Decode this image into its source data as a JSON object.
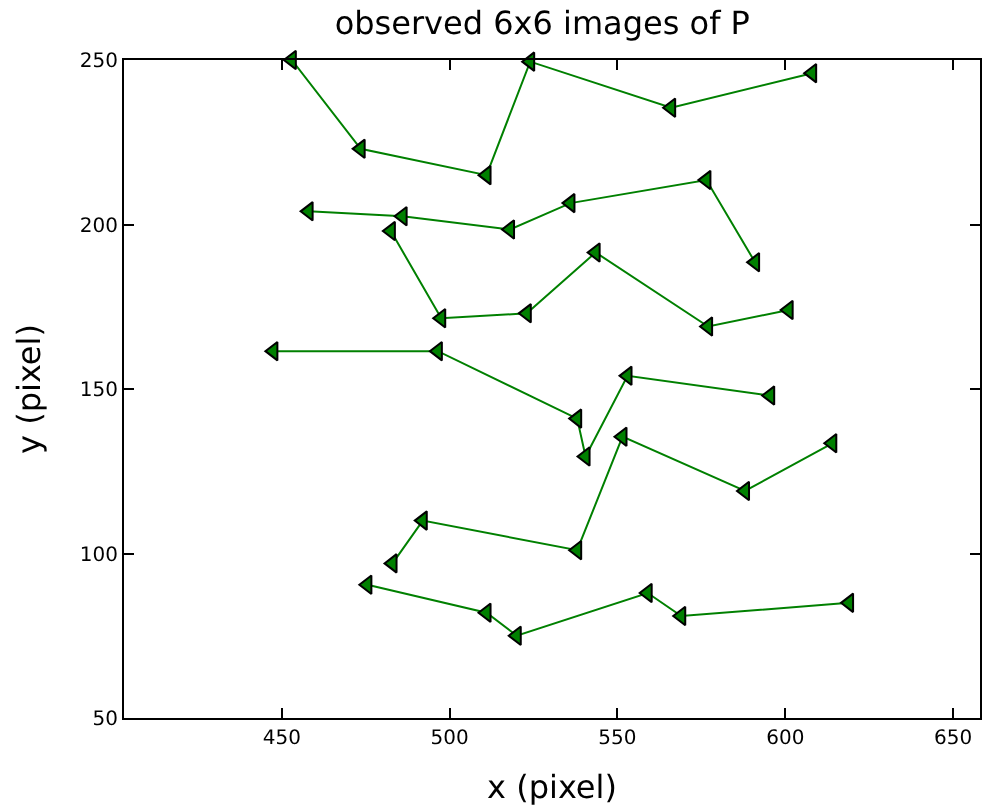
{
  "chart_data": {
    "type": "line",
    "title": "observed 6x6 images of P",
    "xlabel": "x (pixel)",
    "ylabel": "y (pixel)",
    "xlim": [
      403,
      658
    ],
    "xticks": [
      450,
      500,
      550,
      600,
      650
    ],
    "ylim": [
      50,
      250
    ],
    "yticks": [
      50,
      100,
      150,
      200,
      250
    ],
    "marker": "triangle",
    "line_style": "solid",
    "series": [
      {
        "color": "#008000",
        "x": [
          453,
          473.5,
          511,
          524,
          566,
          608
        ],
        "values": [
          250,
          223,
          215,
          249.5,
          235.5,
          246
        ]
      },
      {
        "color": "#008000",
        "x": [
          458,
          486,
          518,
          536,
          576.5,
          591
        ],
        "values": [
          204,
          202.5,
          198.5,
          206.5,
          213.5,
          188.5
        ]
      },
      {
        "color": "#008000",
        "x": [
          482.5,
          497.5,
          523,
          543.5,
          577,
          601
        ],
        "values": [
          198,
          171.5,
          173,
          191.5,
          169,
          174
        ]
      },
      {
        "color": "#008000",
        "x": [
          447.5,
          496.5,
          538,
          540.5,
          553,
          595.5
        ],
        "values": [
          161.5,
          161.5,
          141,
          129.5,
          154,
          148
        ]
      },
      {
        "color": "#008000",
        "x": [
          483,
          492,
          538,
          551.5,
          588,
          614
        ],
        "values": [
          97,
          110,
          101,
          135.5,
          119,
          133.5
        ]
      },
      {
        "color": "#008000",
        "x": [
          475.5,
          511,
          520,
          559,
          569,
          619
        ],
        "values": [
          90.5,
          82,
          75,
          88,
          81,
          85
        ]
      }
    ]
  }
}
